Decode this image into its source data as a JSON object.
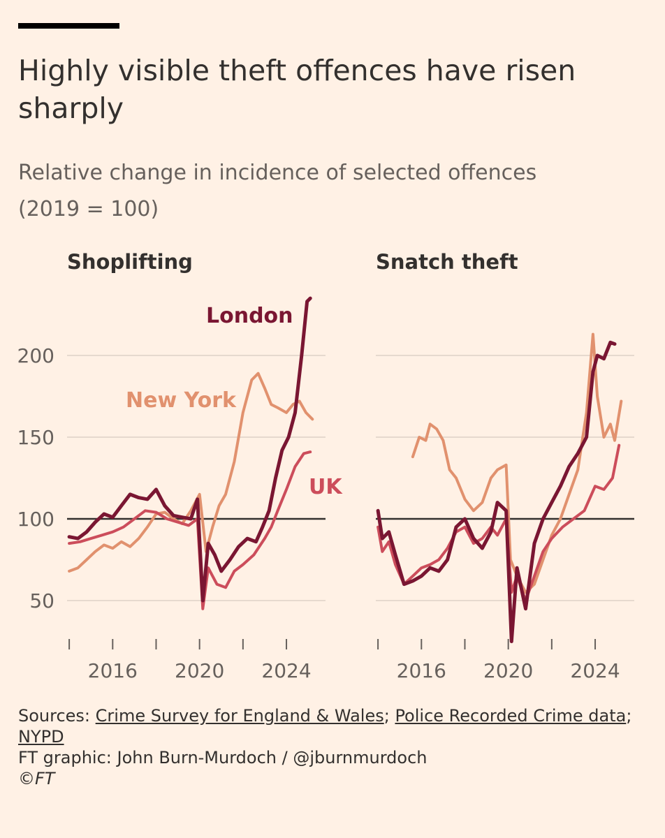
{
  "title": "Highly visible theft offences have risen sharply",
  "subtitle_line1": "Relative change in incidence of selected offences",
  "subtitle_line2": "(2019 = 100)",
  "footer": {
    "sources_prefix": "Sources: ",
    "sources": [
      "Crime Survey for England & Wales",
      "Police Recorded Crime data",
      "NYPD"
    ],
    "credit": "FT graphic: John Burn-Murdoch / @jburnmurdoch",
    "copyright": "©FT"
  },
  "colors": {
    "London": "#7A1632",
    "UK": "#CC4D5B",
    "New York": "#E1916E",
    "axis": "#66605C",
    "grid": "#E6D9CE",
    "baseline": "#33302E"
  },
  "chart_data": [
    {
      "type": "line",
      "title": "Shoplifting",
      "xlabel": "",
      "ylabel": "",
      "x_ticks": [
        2016,
        2020,
        2024
      ],
      "y_ticks": [
        50,
        100,
        150,
        200
      ],
      "ylim": [
        25,
        240
      ],
      "xlim": [
        2013.9,
        2025.8
      ],
      "reference_line": 100,
      "labels": [
        {
          "text": "London",
          "series": "London"
        },
        {
          "text": "New York",
          "series": "New York"
        },
        {
          "text": "UK",
          "series": "UK"
        }
      ],
      "series": [
        {
          "name": "New York",
          "points": [
            [
              2014,
              68
            ],
            [
              2014.4,
              70
            ],
            [
              2014.8,
              75
            ],
            [
              2015.2,
              80
            ],
            [
              2015.6,
              84
            ],
            [
              2016,
              82
            ],
            [
              2016.4,
              86
            ],
            [
              2016.8,
              83
            ],
            [
              2017.2,
              88
            ],
            [
              2017.6,
              95
            ],
            [
              2018,
              103
            ],
            [
              2018.4,
              104
            ],
            [
              2018.8,
              100
            ],
            [
              2019.2,
              97
            ],
            [
              2019.6,
              105
            ],
            [
              2020,
              115
            ],
            [
              2020.3,
              80
            ],
            [
              2020.6,
              95
            ],
            [
              2020.9,
              108
            ],
            [
              2021.2,
              115
            ],
            [
              2021.6,
              135
            ],
            [
              2022,
              165
            ],
            [
              2022.4,
              185
            ],
            [
              2022.7,
              189
            ],
            [
              2023,
              180
            ],
            [
              2023.3,
              170
            ],
            [
              2023.6,
              168
            ],
            [
              2024,
              165
            ],
            [
              2024.3,
              170
            ],
            [
              2024.6,
              172
            ],
            [
              2024.9,
              165
            ],
            [
              2025.2,
              161
            ]
          ]
        },
        {
          "name": "UK",
          "points": [
            [
              2014,
              85
            ],
            [
              2014.5,
              86
            ],
            [
              2015,
              88
            ],
            [
              2015.5,
              90
            ],
            [
              2016,
              92
            ],
            [
              2016.5,
              95
            ],
            [
              2017,
              100
            ],
            [
              2017.5,
              105
            ],
            [
              2018,
              104
            ],
            [
              2018.5,
              100
            ],
            [
              2019,
              98
            ],
            [
              2019.5,
              96
            ],
            [
              2019.9,
              100
            ],
            [
              2020.15,
              45
            ],
            [
              2020.4,
              70
            ],
            [
              2020.8,
              60
            ],
            [
              2021.2,
              58
            ],
            [
              2021.6,
              68
            ],
            [
              2022,
              72
            ],
            [
              2022.5,
              78
            ],
            [
              2023,
              88
            ],
            [
              2023.3,
              95
            ],
            [
              2023.6,
              105
            ],
            [
              2024,
              118
            ],
            [
              2024.4,
              132
            ],
            [
              2024.8,
              140
            ],
            [
              2025.1,
              141
            ]
          ]
        },
        {
          "name": "London",
          "points": [
            [
              2014,
              89
            ],
            [
              2014.4,
              88
            ],
            [
              2014.8,
              92
            ],
            [
              2015.2,
              98
            ],
            [
              2015.6,
              103
            ],
            [
              2016,
              101
            ],
            [
              2016.4,
              108
            ],
            [
              2016.8,
              115
            ],
            [
              2017.2,
              113
            ],
            [
              2017.6,
              112
            ],
            [
              2018,
              118
            ],
            [
              2018.4,
              108
            ],
            [
              2018.8,
              102
            ],
            [
              2019.2,
              101
            ],
            [
              2019.6,
              100
            ],
            [
              2019.9,
              112
            ],
            [
              2020.15,
              50
            ],
            [
              2020.4,
              85
            ],
            [
              2020.7,
              78
            ],
            [
              2021,
              68
            ],
            [
              2021.4,
              75
            ],
            [
              2021.8,
              83
            ],
            [
              2022.2,
              88
            ],
            [
              2022.6,
              86
            ],
            [
              2022.9,
              95
            ],
            [
              2023.2,
              105
            ],
            [
              2023.5,
              125
            ],
            [
              2023.8,
              142
            ],
            [
              2024.1,
              150
            ],
            [
              2024.4,
              165
            ],
            [
              2024.7,
              200
            ],
            [
              2024.95,
              233
            ],
            [
              2025.1,
              235
            ]
          ]
        }
      ]
    },
    {
      "type": "line",
      "title": "Snatch theft",
      "xlabel": "",
      "ylabel": "",
      "x_ticks": [
        2016,
        2020,
        2024
      ],
      "y_ticks": [
        50,
        100,
        150,
        200
      ],
      "ylim": [
        25,
        240
      ],
      "xlim": [
        2013.9,
        2025.8
      ],
      "reference_line": 100,
      "series": [
        {
          "name": "New York",
          "points": [
            [
              2015.6,
              138
            ],
            [
              2015.9,
              150
            ],
            [
              2016.2,
              148
            ],
            [
              2016.4,
              158
            ],
            [
              2016.7,
              155
            ],
            [
              2017,
              148
            ],
            [
              2017.3,
              130
            ],
            [
              2017.6,
              125
            ],
            [
              2018,
              112
            ],
            [
              2018.4,
              105
            ],
            [
              2018.8,
              110
            ],
            [
              2019.2,
              125
            ],
            [
              2019.5,
              130
            ],
            [
              2019.9,
              133
            ],
            [
              2020.1,
              75
            ],
            [
              2020.4,
              65
            ],
            [
              2020.8,
              55
            ],
            [
              2021.2,
              60
            ],
            [
              2021.6,
              75
            ],
            [
              2022,
              90
            ],
            [
              2022.4,
              100
            ],
            [
              2022.8,
              115
            ],
            [
              2023.2,
              130
            ],
            [
              2023.6,
              165
            ],
            [
              2023.9,
              213
            ],
            [
              2024.1,
              175
            ],
            [
              2024.4,
              150
            ],
            [
              2024.7,
              158
            ],
            [
              2024.9,
              148
            ],
            [
              2025.2,
              172
            ]
          ]
        },
        {
          "name": "UK",
          "points": [
            [
              2014,
              95
            ],
            [
              2014.2,
              80
            ],
            [
              2014.5,
              86
            ],
            [
              2014.8,
              72
            ],
            [
              2015.2,
              60
            ],
            [
              2015.6,
              65
            ],
            [
              2016,
              70
            ],
            [
              2016.4,
              72
            ],
            [
              2016.8,
              75
            ],
            [
              2017.2,
              82
            ],
            [
              2017.6,
              92
            ],
            [
              2018,
              95
            ],
            [
              2018.4,
              85
            ],
            [
              2018.8,
              88
            ],
            [
              2019.2,
              95
            ],
            [
              2019.5,
              90
            ],
            [
              2019.9,
              100
            ],
            [
              2020.15,
              55
            ],
            [
              2020.4,
              65
            ],
            [
              2020.8,
              50
            ],
            [
              2021.2,
              65
            ],
            [
              2021.6,
              80
            ],
            [
              2022,
              88
            ],
            [
              2022.5,
              95
            ],
            [
              2023,
              100
            ],
            [
              2023.5,
              105
            ],
            [
              2024,
              120
            ],
            [
              2024.4,
              118
            ],
            [
              2024.8,
              125
            ],
            [
              2025.1,
              145
            ]
          ]
        },
        {
          "name": "London",
          "points": [
            [
              2014,
              105
            ],
            [
              2014.2,
              88
            ],
            [
              2014.5,
              92
            ],
            [
              2014.8,
              78
            ],
            [
              2015.2,
              60
            ],
            [
              2015.6,
              62
            ],
            [
              2016,
              65
            ],
            [
              2016.4,
              70
            ],
            [
              2016.8,
              68
            ],
            [
              2017.2,
              75
            ],
            [
              2017.6,
              95
            ],
            [
              2018,
              100
            ],
            [
              2018.4,
              88
            ],
            [
              2018.8,
              82
            ],
            [
              2019.2,
              92
            ],
            [
              2019.5,
              110
            ],
            [
              2019.9,
              105
            ],
            [
              2020.15,
              25
            ],
            [
              2020.4,
              70
            ],
            [
              2020.8,
              45
            ],
            [
              2021.2,
              85
            ],
            [
              2021.6,
              100
            ],
            [
              2022,
              110
            ],
            [
              2022.4,
              120
            ],
            [
              2022.8,
              132
            ],
            [
              2023.2,
              140
            ],
            [
              2023.6,
              150
            ],
            [
              2023.9,
              190
            ],
            [
              2024.1,
              200
            ],
            [
              2024.4,
              198
            ],
            [
              2024.7,
              208
            ],
            [
              2024.9,
              207
            ]
          ]
        }
      ]
    }
  ]
}
